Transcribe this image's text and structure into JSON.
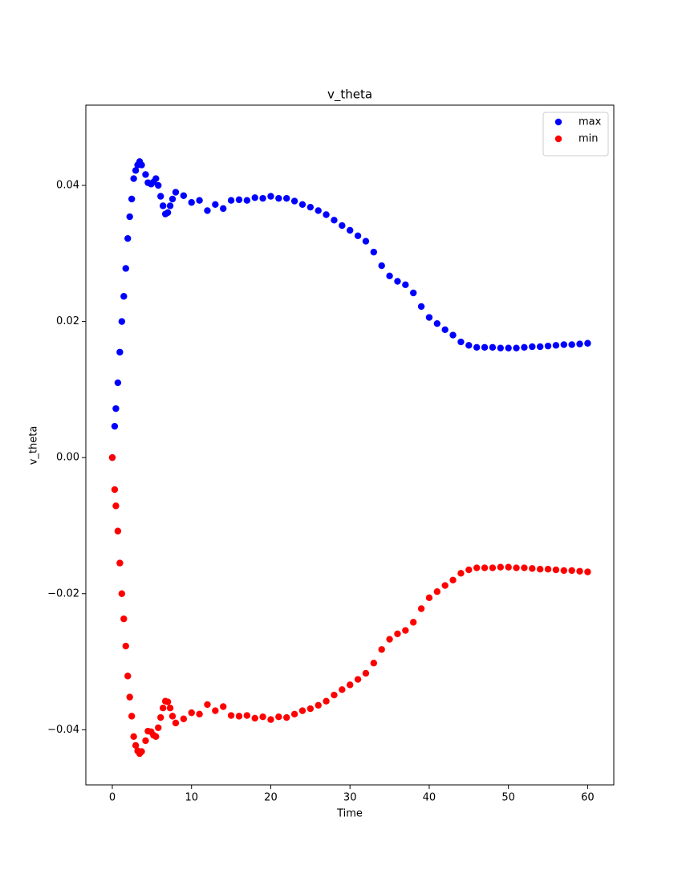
{
  "chart_data": {
    "type": "scatter",
    "title": "v_theta",
    "x_label": "Time",
    "y_label": "v_theta",
    "x": [
      0,
      0.3,
      0.45,
      0.7,
      0.95,
      1.2,
      1.45,
      1.7,
      1.95,
      2.2,
      2.45,
      2.7,
      2.95,
      3.2,
      3.45,
      3.7,
      4.2,
      4.5,
      4.9,
      5.2,
      5.5,
      5.8,
      6.1,
      6.4,
      6.7,
      7.0,
      7.3,
      7.6,
      8,
      9,
      10,
      11,
      12,
      13,
      14,
      15,
      16,
      17,
      18,
      19,
      20,
      21,
      22,
      23,
      24,
      25,
      26,
      27,
      28,
      29,
      30,
      31,
      32,
      33,
      34,
      35,
      36,
      37,
      38,
      39,
      40,
      41,
      42,
      43,
      44,
      45,
      46,
      47,
      48,
      49,
      50,
      51,
      52,
      53,
      54,
      55,
      56,
      57,
      58,
      59,
      60
    ],
    "series": [
      {
        "name": "max",
        "color": "#0000ff",
        "values": [
          0,
          0.0046,
          0.0072,
          0.011,
          0.0155,
          0.02,
          0.0237,
          0.0278,
          0.0322,
          0.0354,
          0.038,
          0.041,
          0.0422,
          0.043,
          0.0435,
          0.043,
          0.0416,
          0.0404,
          0.0402,
          0.0405,
          0.041,
          0.04,
          0.0384,
          0.037,
          0.0358,
          0.036,
          0.037,
          0.038,
          0.039,
          0.0385,
          0.0375,
          0.0378,
          0.0363,
          0.0372,
          0.0366,
          0.0378,
          0.0379,
          0.0378,
          0.0382,
          0.0381,
          0.0384,
          0.0381,
          0.0381,
          0.0377,
          0.0372,
          0.0368,
          0.0363,
          0.0357,
          0.0349,
          0.0341,
          0.0334,
          0.0326,
          0.0318,
          0.0302,
          0.0282,
          0.0267,
          0.0259,
          0.0254,
          0.0242,
          0.0222,
          0.0206,
          0.0197,
          0.0188,
          0.018,
          0.017,
          0.0165,
          0.0162,
          0.0162,
          0.0162,
          0.0161,
          0.0161,
          0.0161,
          0.0162,
          0.0163,
          0.0163,
          0.0164,
          0.0165,
          0.0166,
          0.0166,
          0.0167,
          0.0168
        ]
      },
      {
        "name": "min",
        "color": "#ff0000",
        "values": [
          0,
          -0.0047,
          -0.0071,
          -0.0108,
          -0.0155,
          -0.02,
          -0.0237,
          -0.0277,
          -0.0321,
          -0.0352,
          -0.038,
          -0.041,
          -0.0423,
          -0.0431,
          -0.0435,
          -0.0432,
          -0.0416,
          -0.0402,
          -0.0403,
          -0.0408,
          -0.041,
          -0.0397,
          -0.0382,
          -0.0368,
          -0.0358,
          -0.0359,
          -0.0368,
          -0.038,
          -0.039,
          -0.0384,
          -0.0375,
          -0.0377,
          -0.0363,
          -0.0372,
          -0.0366,
          -0.0379,
          -0.038,
          -0.0379,
          -0.0383,
          -0.0381,
          -0.0385,
          -0.0381,
          -0.0382,
          -0.0377,
          -0.0372,
          -0.0369,
          -0.0364,
          -0.0358,
          -0.0349,
          -0.0341,
          -0.0334,
          -0.0326,
          -0.0317,
          -0.0302,
          -0.0282,
          -0.0267,
          -0.0259,
          -0.0254,
          -0.0242,
          -0.0222,
          -0.0206,
          -0.0197,
          -0.0188,
          -0.018,
          -0.017,
          -0.0165,
          -0.0162,
          -0.0162,
          -0.0162,
          -0.0161,
          -0.0161,
          -0.0162,
          -0.0162,
          -0.0163,
          -0.0164,
          -0.0164,
          -0.0165,
          -0.0166,
          -0.0166,
          -0.0167,
          -0.0168
        ]
      }
    ],
    "xlim": [
      -3.34,
      63.3
    ],
    "ylim": [
      -0.0481,
      0.0518
    ],
    "xticks": [
      0,
      10,
      20,
      30,
      40,
      50,
      60
    ],
    "yticks": [
      {
        "value": -0.04,
        "label": "−0.04"
      },
      {
        "value": -0.02,
        "label": "−0.02"
      },
      {
        "value": 0,
        "label": "0.00"
      },
      {
        "value": 0.02,
        "label": "0.02"
      },
      {
        "value": 0.04,
        "label": "0.04"
      }
    ],
    "legend": "upper right"
  }
}
